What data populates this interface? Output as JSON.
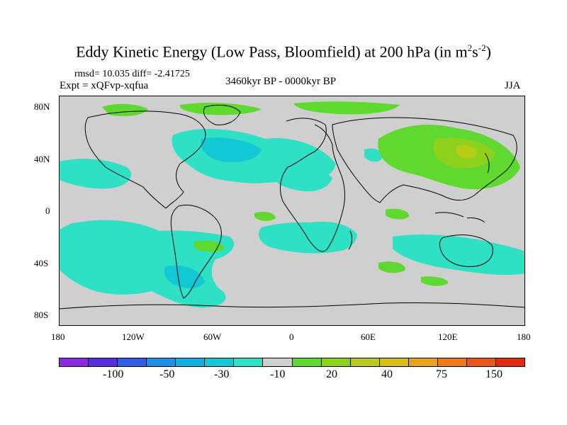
{
  "title": {
    "main": "Eddy Kinetic Energy (Low Pass, Bloomfield) at 200 hPa (in m",
    "exp1": "2",
    "mid": "s",
    "exp2": "-2",
    "close": ")"
  },
  "stats": {
    "line": "rmsd= 10.035 diff= -2.41725"
  },
  "experiment": "Expt = xQFvp-xqfua",
  "period": "3460kyr BP - 0000kyr BP",
  "season": "JJA",
  "y_axis": {
    "labels": [
      "80N",
      "40N",
      "0",
      "40S",
      "80S"
    ],
    "values": [
      80,
      40,
      0,
      -40,
      -80
    ]
  },
  "x_axis": {
    "labels": [
      "180",
      "120W",
      "60W",
      "0",
      "60E",
      "120E",
      "180"
    ],
    "values": [
      -180,
      -120,
      -60,
      0,
      60,
      120,
      180
    ]
  },
  "colorbar": {
    "colors": [
      "#8a2be2",
      "#5a2ee0",
      "#2f5fe6",
      "#1e90e8",
      "#12aee0",
      "#13c8d4",
      "#2ee0c4",
      "#cfcfcf",
      "#5fd82f",
      "#8ed21e",
      "#b8cc16",
      "#d7c00e",
      "#e8a31a",
      "#ec7d1a",
      "#ea561a",
      "#e02a10"
    ],
    "labels": [
      "-100",
      "-50",
      "-30",
      "-10",
      "20",
      "40",
      "75",
      "150"
    ]
  },
  "palette": {
    "neg_light": "#2ee0c4",
    "neg_mid": "#13c8d4",
    "pos_light": "#5fd82f",
    "pos_mid": "#8ed21e",
    "pos_high": "#b8cc16",
    "neutral": "#cfcfcf"
  }
}
